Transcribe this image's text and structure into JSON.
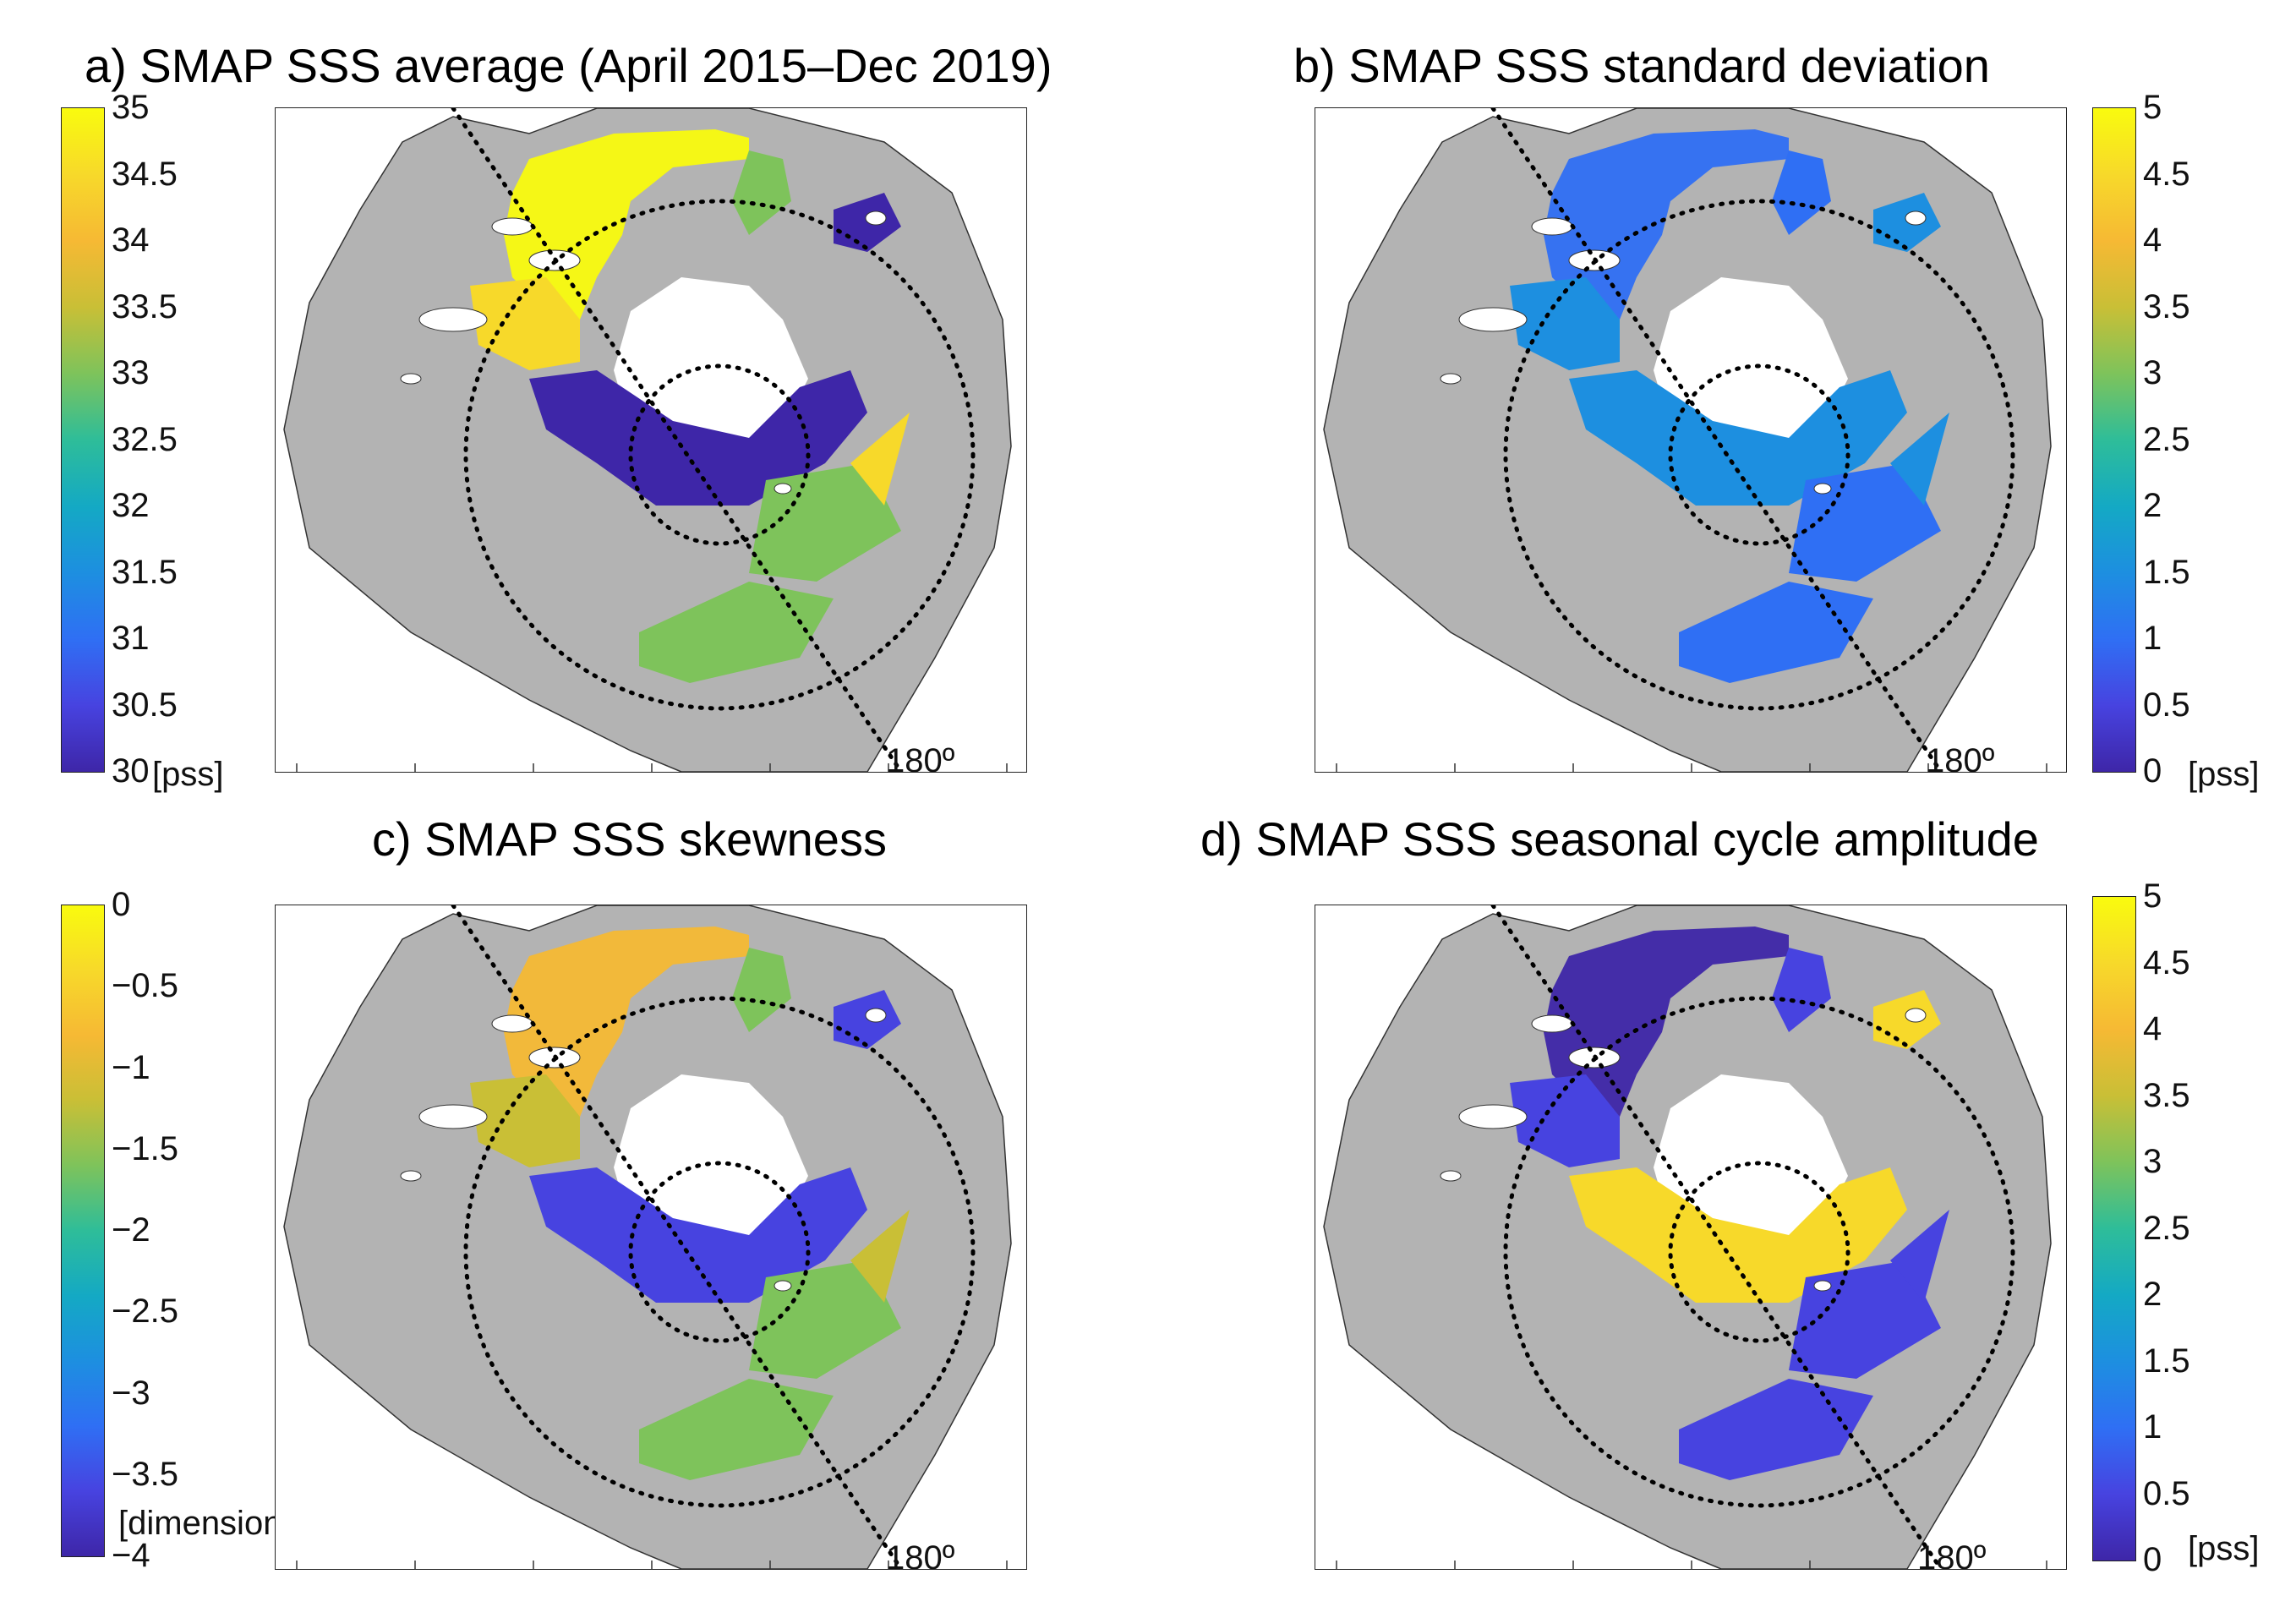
{
  "panels": [
    {
      "key": "a",
      "title": "a) SMAP SSS average (April 2015–Dec 2019)",
      "colorbar": {
        "ticks": [
          "35",
          "34.5",
          "34",
          "33.5",
          "33",
          "32.5",
          "32",
          "31.5",
          "31",
          "30.5",
          "30"
        ],
        "unit": "[pss]",
        "min": 30,
        "max": 35
      },
      "lon_label": "180º",
      "ocean_mode": "average"
    },
    {
      "key": "b",
      "title": "b) SMAP SSS standard deviation",
      "colorbar": {
        "ticks": [
          "5",
          "4.5",
          "4",
          "3.5",
          "3",
          "2.5",
          "2",
          "1.5",
          "1",
          "0.5",
          "0"
        ],
        "unit": "[pss]",
        "min": 0,
        "max": 5
      },
      "lon_label": "180º",
      "ocean_mode": "stdev"
    },
    {
      "key": "c",
      "title": "c) SMAP SSS skewness",
      "colorbar": {
        "ticks": [
          "0",
          "−0.5",
          "−1",
          "−1.5",
          "−2",
          "−2.5",
          "−3",
          "−3.5",
          "−4"
        ],
        "unit": "[dimensionless]",
        "min": -4,
        "max": 0
      },
      "lon_label": "180º",
      "ocean_mode": "skewness"
    },
    {
      "key": "d",
      "title": "d) SMAP SSS seasonal cycle amplitude",
      "colorbar": {
        "ticks": [
          "5",
          "4.5",
          "4",
          "3.5",
          "3",
          "2.5",
          "2",
          "1.5",
          "1",
          "0.5",
          "0"
        ],
        "unit": "[pss]",
        "min": 0,
        "max": 5
      },
      "lon_label": "180º",
      "ocean_mode": "amplitude"
    }
  ],
  "colors": {
    "land": "#b3b3b3",
    "parula": [
      "#3e26a8",
      "#4743e0",
      "#2f6ff4",
      "#1d8fe0",
      "#14a9c4",
      "#2ebd99",
      "#7ec35b",
      "#c9bf36",
      "#f6b934",
      "#f7d92a",
      "#f9fb0e"
    ]
  }
}
